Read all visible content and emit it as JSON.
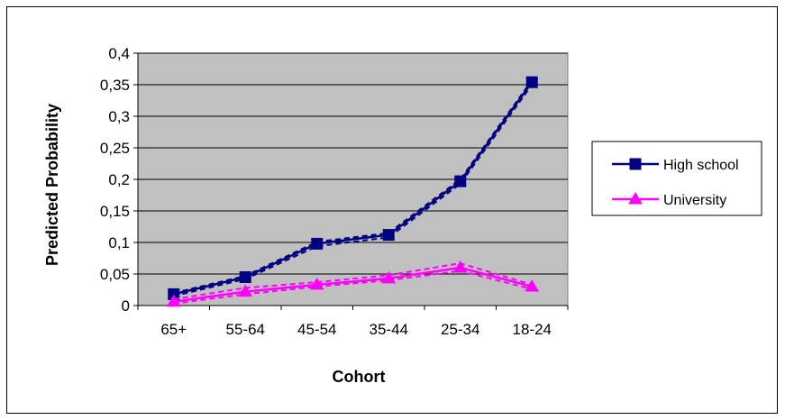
{
  "chart_data": {
    "type": "line",
    "title": "",
    "xlabel": "Cohort",
    "ylabel": "Predicted Probability",
    "categories": [
      "65+",
      "55-64",
      "45-54",
      "35-44",
      "25-34",
      "18-24"
    ],
    "yticks": [
      "0",
      "0,05",
      "0,1",
      "0,15",
      "0,2",
      "0,25",
      "0,3",
      "0,35",
      "0,4"
    ],
    "ylim": [
      0,
      0.4
    ],
    "ystep": 0.05,
    "grid": true,
    "legend_position": "right",
    "plot_background": "#c0c0c0",
    "series": [
      {
        "name": "High school",
        "marker": "square",
        "color": "#000080",
        "values": [
          0.018,
          0.045,
          0.098,
          0.112,
          0.197,
          0.354
        ],
        "band_upper": [
          0.02,
          0.047,
          0.101,
          0.115,
          0.2,
          0.357
        ],
        "band_lower": [
          0.015,
          0.042,
          0.094,
          0.108,
          0.193,
          0.35
        ]
      },
      {
        "name": "University",
        "marker": "triangle",
        "color": "#ff00ff",
        "values": [
          0.006,
          0.022,
          0.033,
          0.043,
          0.06,
          0.03
        ],
        "band_upper": [
          0.01,
          0.028,
          0.037,
          0.048,
          0.067,
          0.033
        ],
        "band_lower": [
          0.003,
          0.018,
          0.03,
          0.04,
          0.055,
          0.026
        ]
      }
    ]
  }
}
